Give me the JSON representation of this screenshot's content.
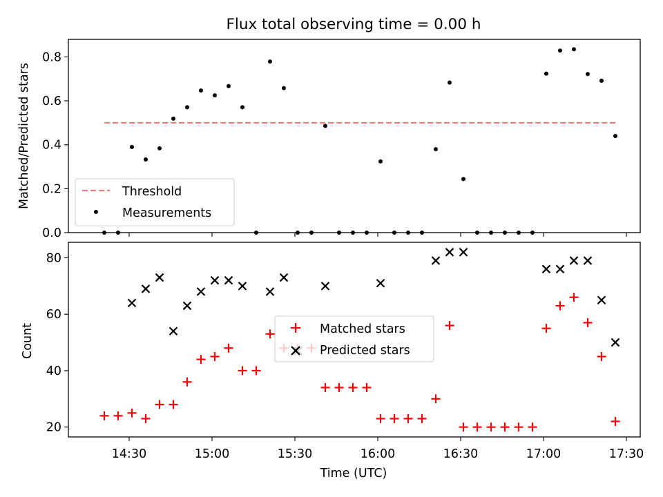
{
  "chart_data": [
    {
      "type": "scatter",
      "title": "Flux total observing time = 0.00 h",
      "xlabel": "",
      "ylabel": "Matched/Predicted stars",
      "xlim": [
        "14:08",
        "17:35"
      ],
      "ylim": [
        0,
        0.88
      ],
      "yticks": [
        "0.0",
        "0.2",
        "0.4",
        "0.6",
        "0.8"
      ],
      "xticks": [
        "14:30",
        "15:00",
        "15:30",
        "16:00",
        "16:30",
        "17:00",
        "17:30"
      ],
      "legend": {
        "placement": "lower-left",
        "entries": [
          "Threshold",
          "Measurements"
        ]
      },
      "series": [
        {
          "name": "Threshold",
          "style": "dashed-line",
          "color": "#f08080",
          "points": [
            {
              "x": "14:21",
              "y": 0.5
            },
            {
              "x": "17:26",
              "y": 0.5
            }
          ]
        },
        {
          "name": "Measurements",
          "style": "dot",
          "color": "#000000",
          "points": [
            {
              "x": "14:21",
              "y": 0.0
            },
            {
              "x": "14:26",
              "y": 0.0
            },
            {
              "x": "14:31",
              "y": 0.39
            },
            {
              "x": "14:36",
              "y": 0.333
            },
            {
              "x": "14:41",
              "y": 0.384
            },
            {
              "x": "14:46",
              "y": 0.519
            },
            {
              "x": "14:51",
              "y": 0.571
            },
            {
              "x": "14:56",
              "y": 0.647
            },
            {
              "x": "15:01",
              "y": 0.625
            },
            {
              "x": "15:06",
              "y": 0.667
            },
            {
              "x": "15:11",
              "y": 0.571
            },
            {
              "x": "15:16",
              "y": 0.0
            },
            {
              "x": "15:21",
              "y": 0.779
            },
            {
              "x": "15:26",
              "y": 0.658
            },
            {
              "x": "15:31",
              "y": 0.0
            },
            {
              "x": "15:36",
              "y": 0.0
            },
            {
              "x": "15:41",
              "y": 0.486
            },
            {
              "x": "15:46",
              "y": 0.0
            },
            {
              "x": "15:51",
              "y": 0.0
            },
            {
              "x": "15:56",
              "y": 0.0
            },
            {
              "x": "16:01",
              "y": 0.324
            },
            {
              "x": "16:06",
              "y": 0.0
            },
            {
              "x": "16:11",
              "y": 0.0
            },
            {
              "x": "16:16",
              "y": 0.0
            },
            {
              "x": "16:21",
              "y": 0.38
            },
            {
              "x": "16:26",
              "y": 0.683
            },
            {
              "x": "16:31",
              "y": 0.244
            },
            {
              "x": "16:36",
              "y": 0.0
            },
            {
              "x": "16:41",
              "y": 0.0
            },
            {
              "x": "16:46",
              "y": 0.0
            },
            {
              "x": "16:51",
              "y": 0.0
            },
            {
              "x": "16:56",
              "y": 0.0
            },
            {
              "x": "17:01",
              "y": 0.724
            },
            {
              "x": "17:06",
              "y": 0.829
            },
            {
              "x": "17:11",
              "y": 0.835
            },
            {
              "x": "17:16",
              "y": 0.722
            },
            {
              "x": "17:21",
              "y": 0.692
            },
            {
              "x": "17:26",
              "y": 0.44
            }
          ]
        }
      ]
    },
    {
      "type": "scatter",
      "title": "",
      "xlabel": "Time (UTC)",
      "ylabel": "Count",
      "xlim": [
        "14:08",
        "17:35"
      ],
      "ylim": [
        16.5,
        85.5
      ],
      "yticks": [
        "20",
        "40",
        "60",
        "80"
      ],
      "xticks": [
        "14:30",
        "15:00",
        "15:30",
        "16:00",
        "16:30",
        "17:00",
        "17:30"
      ],
      "legend": {
        "placement": "center",
        "entries": [
          "Matched stars",
          "Predicted stars"
        ]
      },
      "series": [
        {
          "name": "Matched stars",
          "marker": "plus",
          "color": "#ff0000",
          "points": [
            {
              "x": "14:21",
              "y": 24
            },
            {
              "x": "14:26",
              "y": 24
            },
            {
              "x": "14:31",
              "y": 25
            },
            {
              "x": "14:36",
              "y": 23
            },
            {
              "x": "14:41",
              "y": 28
            },
            {
              "x": "14:46",
              "y": 28
            },
            {
              "x": "14:51",
              "y": 36
            },
            {
              "x": "14:56",
              "y": 44
            },
            {
              "x": "15:01",
              "y": 45
            },
            {
              "x": "15:06",
              "y": 48
            },
            {
              "x": "15:11",
              "y": 40
            },
            {
              "x": "15:16",
              "y": 40
            },
            {
              "x": "15:21",
              "y": 53
            },
            {
              "x": "15:26",
              "y": 48
            },
            {
              "x": "15:31",
              "y": 48
            },
            {
              "x": "15:36",
              "y": 48
            },
            {
              "x": "15:41",
              "y": 34
            },
            {
              "x": "15:46",
              "y": 34
            },
            {
              "x": "15:51",
              "y": 34
            },
            {
              "x": "15:56",
              "y": 34
            },
            {
              "x": "16:01",
              "y": 23
            },
            {
              "x": "16:06",
              "y": 23
            },
            {
              "x": "16:11",
              "y": 23
            },
            {
              "x": "16:16",
              "y": 23
            },
            {
              "x": "16:21",
              "y": 30
            },
            {
              "x": "16:26",
              "y": 56
            },
            {
              "x": "16:31",
              "y": 20
            },
            {
              "x": "16:36",
              "y": 20
            },
            {
              "x": "16:41",
              "y": 20
            },
            {
              "x": "16:46",
              "y": 20
            },
            {
              "x": "16:51",
              "y": 20
            },
            {
              "x": "16:56",
              "y": 20
            },
            {
              "x": "17:01",
              "y": 55
            },
            {
              "x": "17:06",
              "y": 63
            },
            {
              "x": "17:11",
              "y": 66
            },
            {
              "x": "17:16",
              "y": 57
            },
            {
              "x": "17:21",
              "y": 45
            },
            {
              "x": "17:26",
              "y": 22
            }
          ]
        },
        {
          "name": "Predicted stars",
          "marker": "x",
          "color": "#000000",
          "points": [
            {
              "x": "14:31",
              "y": 64
            },
            {
              "x": "14:36",
              "y": 69
            },
            {
              "x": "14:41",
              "y": 73
            },
            {
              "x": "14:46",
              "y": 54
            },
            {
              "x": "14:51",
              "y": 63
            },
            {
              "x": "14:56",
              "y": 68
            },
            {
              "x": "15:01",
              "y": 72
            },
            {
              "x": "15:06",
              "y": 72
            },
            {
              "x": "15:11",
              "y": 70
            },
            {
              "x": "15:21",
              "y": 68
            },
            {
              "x": "15:26",
              "y": 73
            },
            {
              "x": "15:31",
              "y": 47
            },
            {
              "x": "15:41",
              "y": 70
            },
            {
              "x": "16:01",
              "y": 71
            },
            {
              "x": "16:21",
              "y": 79
            },
            {
              "x": "16:26",
              "y": 82
            },
            {
              "x": "16:31",
              "y": 82
            },
            {
              "x": "17:01",
              "y": 76
            },
            {
              "x": "17:06",
              "y": 76
            },
            {
              "x": "17:11",
              "y": 79
            },
            {
              "x": "17:16",
              "y": 79
            },
            {
              "x": "17:21",
              "y": 65
            },
            {
              "x": "17:26",
              "y": 50
            }
          ]
        }
      ]
    }
  ]
}
